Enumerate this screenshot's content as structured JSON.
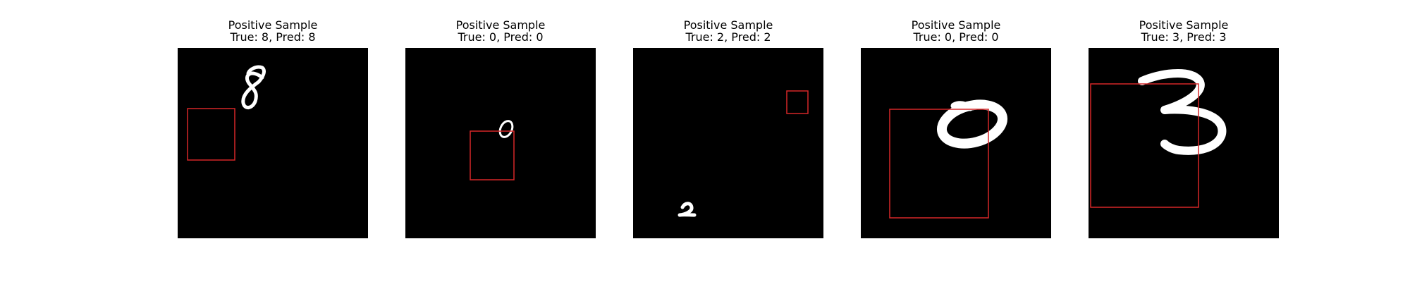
{
  "figure": {
    "samples": [
      {
        "heading": "Positive Sample",
        "label_line": "True: 8, Pred: 8",
        "digit": "8"
      },
      {
        "heading": "Positive Sample",
        "label_line": "True: 0, Pred: 0",
        "digit": "0"
      },
      {
        "heading": "Positive Sample",
        "label_line": "True: 2, Pred: 2",
        "digit": "2"
      },
      {
        "heading": "Positive Sample",
        "label_line": "True: 0, Pred: 0",
        "digit": "0"
      },
      {
        "heading": "Positive Sample",
        "label_line": "True: 3, Pred: 3",
        "digit": "3"
      }
    ],
    "colors": {
      "background": "#000000",
      "digit": "#ffffff",
      "box": "#d62728"
    }
  }
}
